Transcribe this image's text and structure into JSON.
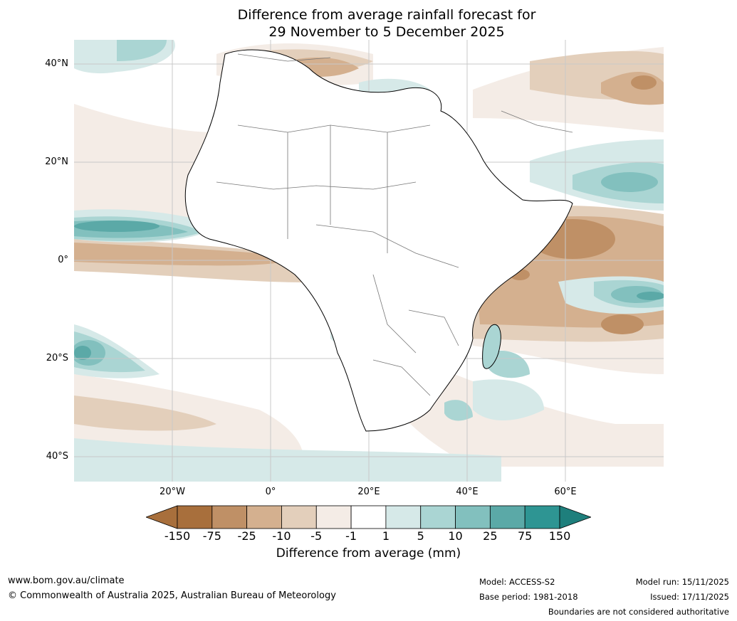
{
  "title": {
    "line1": "Difference from average rainfall forecast for",
    "line2": "29 November to 5 December 2025"
  },
  "map": {
    "lat_labels": [
      "40°N",
      "20°N",
      "0°",
      "20°S",
      "40°S"
    ],
    "lon_labels": [
      "20°W",
      "0°",
      "20°E",
      "40°E",
      "60°E"
    ]
  },
  "colorbar": {
    "tick_labels": [
      "-150",
      "-75",
      "-25",
      "-10",
      "-5",
      "-1",
      "1",
      "5",
      "10",
      "25",
      "75",
      "150"
    ],
    "colors": [
      "#a86f3c",
      "#bf9066",
      "#d4b08f",
      "#e3cfbb",
      "#f4ece6",
      "#ffffff",
      "#d6e9e8",
      "#aad5d3",
      "#82c0be",
      "#5ba9a7",
      "#2e9593",
      "#1e7f7c"
    ],
    "label": "Difference from average (mm)"
  },
  "footer": {
    "url": "www.bom.gov.au/climate",
    "copyright": "© Commonwealth of Australia 2025, Australian Bureau of Meteorology",
    "model": "Model: ACCESS-S2",
    "base_period": "Base period: 1981-2018",
    "model_run": "Model run: 15/11/2025",
    "issued": "Issued: 17/11/2025",
    "disclaimer": "Boundaries are not considered authoritative"
  }
}
